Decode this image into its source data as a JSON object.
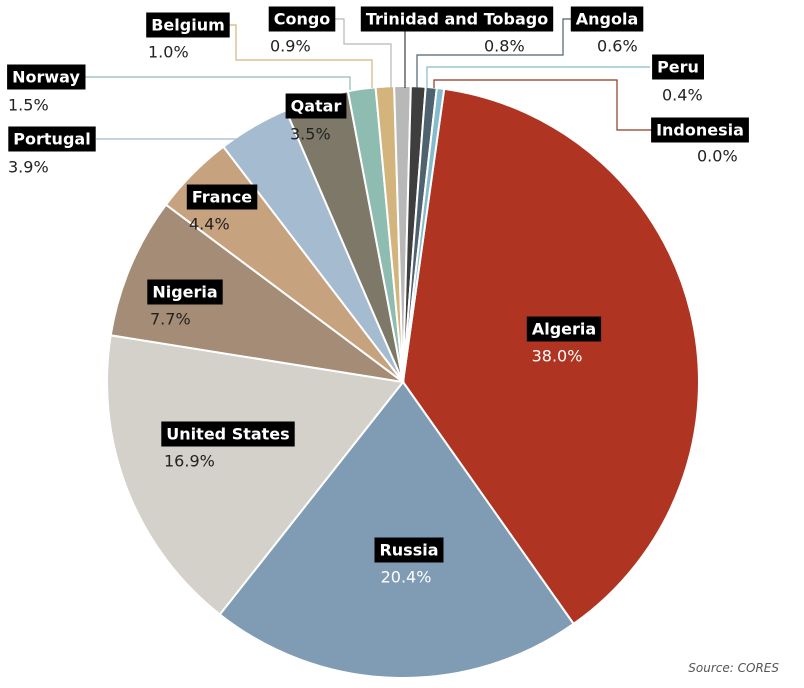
{
  "chart_data": {
    "type": "pie",
    "start_angle_deg": 8,
    "direction": "clockwise",
    "slices": [
      {
        "name": "Algeria",
        "value_label": "38.0%",
        "value": 38.0,
        "color": "#b03422"
      },
      {
        "name": "Russia",
        "value_label": "20.4%",
        "value": 20.4,
        "color": "#7f9cb4"
      },
      {
        "name": "United States",
        "value_label": "16.9%",
        "value": 16.9,
        "color": "#d3d1c9"
      },
      {
        "name": "Nigeria",
        "value_label": "7.7%",
        "value": 7.7,
        "color": "#a48c76"
      },
      {
        "name": "France",
        "value_label": "4.4%",
        "value": 4.4,
        "color": "#c7a27e"
      },
      {
        "name": "Portugal",
        "value_label": "3.9%",
        "value": 3.9,
        "color": "#a5bbcf"
      },
      {
        "name": "Qatar",
        "value_label": "3.5%",
        "value": 3.5,
        "color": "#7e7868"
      },
      {
        "name": "Norway",
        "value_label": "1.5%",
        "value": 1.5,
        "color": "#8fbcb0"
      },
      {
        "name": "Belgium",
        "value_label": "1.0%",
        "value": 1.0,
        "color": "#d3b47c"
      },
      {
        "name": "Congo",
        "value_label": "0.9%",
        "value": 0.9,
        "color": "#b8b8b8"
      },
      {
        "name": "Trinidad and Tobago",
        "value_label": "0.8%",
        "value": 0.8,
        "color": "#3e3e3e"
      },
      {
        "name": "Angola",
        "value_label": "0.6%",
        "value": 0.6,
        "color": "#4f6270"
      },
      {
        "name": "Peru",
        "value_label": "0.4%",
        "value": 0.4,
        "color": "#84bccd"
      },
      {
        "name": "Indonesia",
        "value_label": "0.0%",
        "value": 0.0,
        "color": "#8c3a22"
      }
    ],
    "source": "Source: CORES"
  }
}
